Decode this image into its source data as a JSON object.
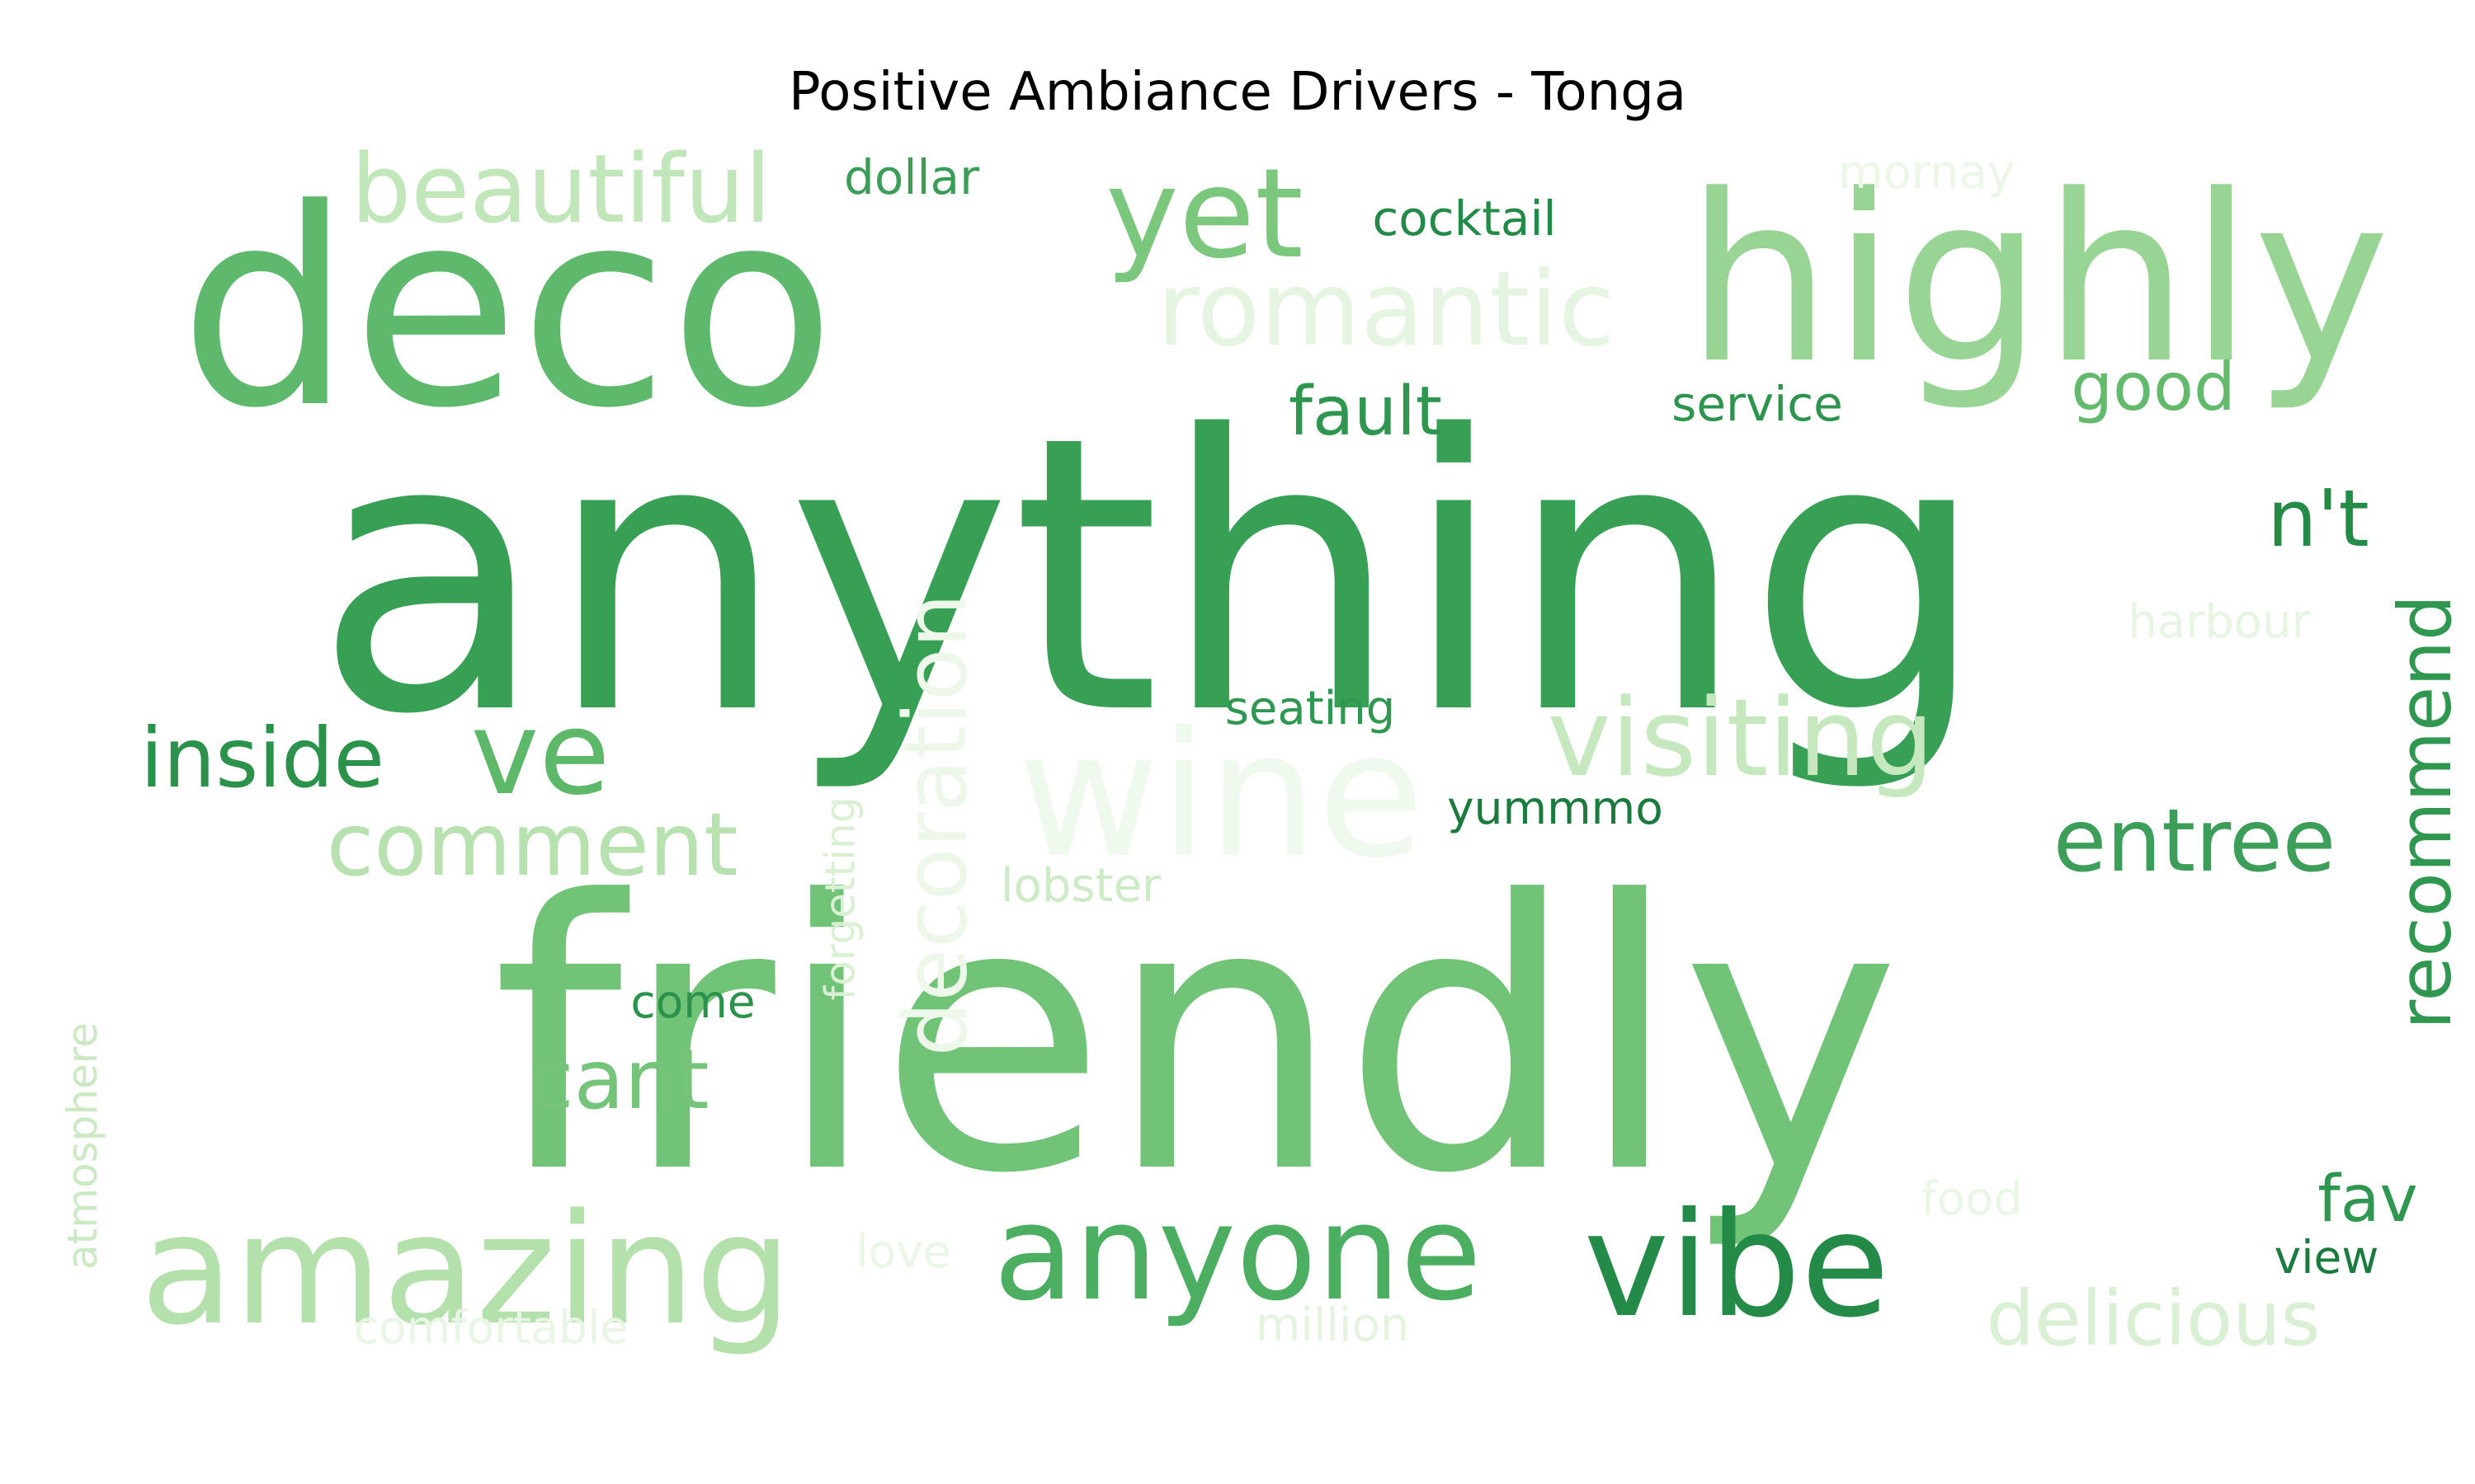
{
  "chart_data": {
    "type": "wordcloud",
    "title": "Positive Ambiance Drivers - Tonga",
    "colormap": "Greens",
    "background": "#ffffff",
    "words": [
      {
        "text": "anything",
        "weight": 1.0,
        "color": "#38a055",
        "orientation": "horizontal"
      },
      {
        "text": "friendly",
        "weight": 0.98,
        "color": "#71c378",
        "orientation": "horizontal"
      },
      {
        "text": "deco",
        "weight": 0.62,
        "color": "#5fb96c",
        "orientation": "horizontal"
      },
      {
        "text": "highly",
        "weight": 0.49,
        "color": "#98d594",
        "orientation": "horizontal"
      },
      {
        "text": "wine",
        "weight": 0.36,
        "color": "#f0f9ee",
        "orientation": "horizontal"
      },
      {
        "text": "amazing",
        "weight": 0.33,
        "color": "#b3e0ab",
        "orientation": "horizontal"
      },
      {
        "text": "vibe",
        "weight": 0.3,
        "color": "#248a47",
        "orientation": "horizontal"
      },
      {
        "text": "anyone",
        "weight": 0.27,
        "color": "#4bae61",
        "orientation": "horizontal"
      },
      {
        "text": "yet",
        "weight": 0.24,
        "color": "#7bc77d",
        "orientation": "horizontal"
      },
      {
        "text": "ve",
        "weight": 0.22,
        "color": "#5eb86a",
        "orientation": "horizontal"
      },
      {
        "text": "visiting",
        "weight": 0.21,
        "color": "#c6e8be",
        "orientation": "horizontal"
      },
      {
        "text": "romantic",
        "weight": 0.2,
        "color": "#e6f5e1",
        "orientation": "horizontal"
      },
      {
        "text": "beautiful",
        "weight": 0.19,
        "color": "#c1e6b9",
        "orientation": "horizontal"
      },
      {
        "text": "decoration",
        "weight": 0.18,
        "color": "#eef8ea",
        "orientation": "vertical"
      },
      {
        "text": "comment",
        "weight": 0.17,
        "color": "#b7e2af",
        "orientation": "horizontal"
      },
      {
        "text": "entree",
        "weight": 0.17,
        "color": "#3c9e59",
        "orientation": "horizontal"
      },
      {
        "text": "delicious",
        "weight": 0.16,
        "color": "#daf0d4",
        "orientation": "horizontal"
      },
      {
        "text": "cant",
        "weight": 0.16,
        "color": "#76c47a",
        "orientation": "horizontal"
      },
      {
        "text": "inside",
        "weight": 0.15,
        "color": "#2a924b",
        "orientation": "horizontal"
      },
      {
        "text": "recommend",
        "weight": 0.14,
        "color": "#2f974f",
        "orientation": "vertical"
      },
      {
        "text": "n't",
        "weight": 0.13,
        "color": "#238b45",
        "orientation": "horizontal"
      },
      {
        "text": "fault",
        "weight": 0.12,
        "color": "#2e964e",
        "orientation": "horizontal"
      },
      {
        "text": "good",
        "weight": 0.12,
        "color": "#63ba6d",
        "orientation": "horizontal"
      },
      {
        "text": "fav",
        "weight": 0.11,
        "color": "#2f974f",
        "orientation": "horizontal"
      },
      {
        "text": "forgetting",
        "weight": 0.09,
        "color": "#d9f0d3",
        "orientation": "vertical"
      },
      {
        "text": "atmosphere",
        "weight": 0.08,
        "color": "#cbeac4",
        "orientation": "vertical"
      },
      {
        "text": "lobster",
        "weight": 0.08,
        "color": "#cdebc6",
        "orientation": "horizontal"
      },
      {
        "text": "dollar",
        "weight": 0.07,
        "color": "#3b9d58",
        "orientation": "horizontal"
      },
      {
        "text": "cocktail",
        "weight": 0.07,
        "color": "#248a47",
        "orientation": "horizontal"
      },
      {
        "text": "harbour",
        "weight": 0.07,
        "color": "#e7f5e3",
        "orientation": "horizontal"
      },
      {
        "text": "seating",
        "weight": 0.07,
        "color": "#2f974f",
        "orientation": "horizontal"
      },
      {
        "text": "mornay",
        "weight": 0.07,
        "color": "#ecf7e8",
        "orientation": "horizontal"
      },
      {
        "text": "million",
        "weight": 0.07,
        "color": "#e4f4df",
        "orientation": "horizontal"
      },
      {
        "text": "food",
        "weight": 0.07,
        "color": "#eaf7e6",
        "orientation": "horizontal"
      },
      {
        "text": "comfortable",
        "weight": 0.07,
        "color": "#e9f6e5",
        "orientation": "horizontal"
      },
      {
        "text": "love",
        "weight": 0.06,
        "color": "#eaf7e6",
        "orientation": "horizontal"
      },
      {
        "text": "service",
        "weight": 0.06,
        "color": "#2c944c",
        "orientation": "horizontal"
      },
      {
        "text": "come",
        "weight": 0.06,
        "color": "#2a924b",
        "orientation": "horizontal"
      },
      {
        "text": "yummmo",
        "weight": 0.06,
        "color": "#1b7a3e",
        "orientation": "horizontal"
      },
      {
        "text": "view",
        "weight": 0.06,
        "color": "#1b7a3e",
        "orientation": "horizontal"
      }
    ]
  }
}
